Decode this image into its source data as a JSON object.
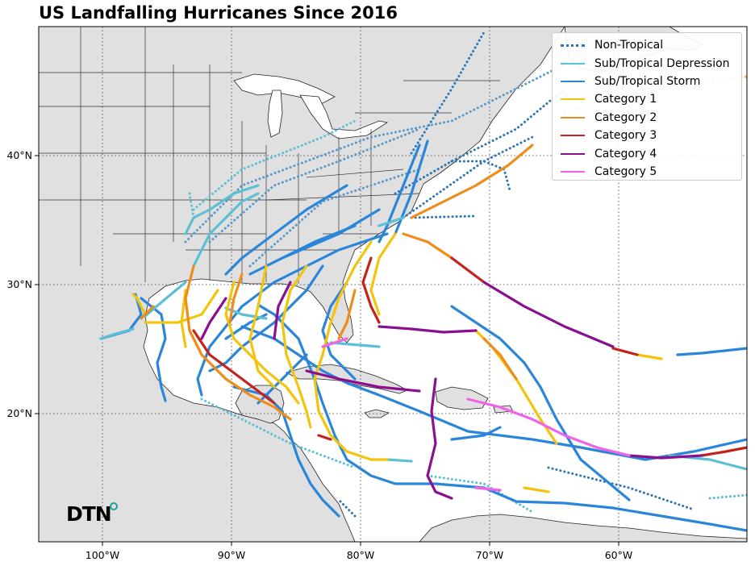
{
  "title": "US Landfalling Hurricanes Since 2016",
  "map": {
    "region": "Gulf of Mexico, Caribbean and Western Atlantic",
    "lon_range": [
      -105,
      -50
    ],
    "lat_range": [
      10,
      50
    ],
    "x_ticks": [
      "100°W",
      "90°W",
      "80°W",
      "70°W",
      "60°W"
    ],
    "y_ticks": [
      "40°N",
      "30°N",
      "20°N"
    ],
    "land_color": "#e0e0e0",
    "ocean_color": "#ffffff",
    "grid": "dotted"
  },
  "legend": {
    "placement": "top-right",
    "items": [
      {
        "label": "Non-Tropical",
        "color": "#2e75b6",
        "style": "dotted"
      },
      {
        "label": "Sub/Tropical Depression",
        "color": "#5bc0d6",
        "style": "solid"
      },
      {
        "label": "Sub/Tropical Storm",
        "color": "#2b86d9",
        "style": "solid"
      },
      {
        "label": "Category 1",
        "color": "#f2c40e",
        "style": "solid"
      },
      {
        "label": "Category 2",
        "color": "#ef8c1b",
        "style": "solid"
      },
      {
        "label": "Category 3",
        "color": "#c4231c",
        "style": "solid"
      },
      {
        "label": "Category 4",
        "color": "#8a1090",
        "style": "solid"
      },
      {
        "label": "Category 5",
        "color": "#f062e6",
        "style": "solid"
      }
    ]
  },
  "logo": {
    "text": "DTN"
  }
}
